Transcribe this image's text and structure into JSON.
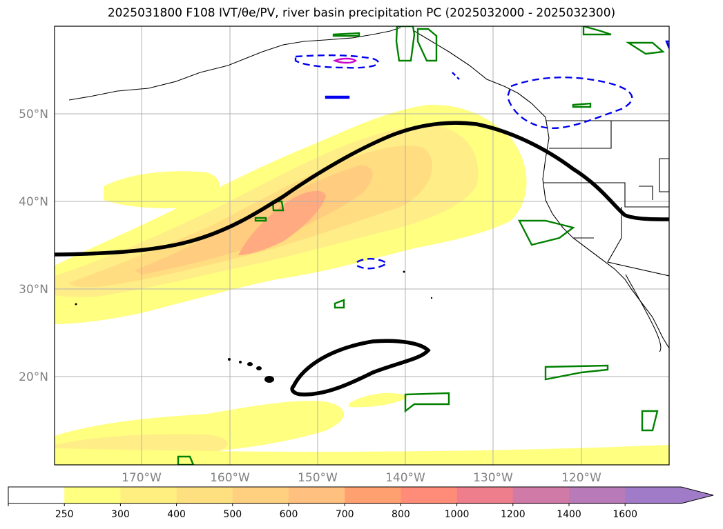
{
  "title": "2025031800 F108 IVT/θe/PV, river basin precipitation PC (2025032000 - 2025032300)",
  "map": {
    "lat_labels": [
      "50°N",
      "40°N",
      "30°N",
      "20°N"
    ],
    "lon_labels": [
      "170°W",
      "160°W",
      "150°W",
      "140°W",
      "130°W",
      "120°W"
    ],
    "fill_colors": {
      "ivt_250": "#ffff80",
      "ivt_300": "#ffee88",
      "ivt_400": "#ffdd80",
      "ivt_500": "#ffcc80",
      "ivt_600": "#ffaa80"
    },
    "contour_colors": {
      "theta_e": "#000000",
      "pv": "#0000ee",
      "precip": "#008000",
      "magenta": "#cc00cc"
    }
  },
  "colorbar": {
    "ticks": [
      "250",
      "300",
      "400",
      "500",
      "600",
      "700",
      "800",
      "1000",
      "1200",
      "1400",
      "1600"
    ],
    "colors": [
      "#ffffff",
      "#ffff80",
      "#ffef80",
      "#ffe080",
      "#ffd080",
      "#ffc080",
      "#ffa070",
      "#ff8c78",
      "#ee7e8c",
      "#d07aa8",
      "#b87ab8",
      "#a07cc8"
    ]
  }
}
